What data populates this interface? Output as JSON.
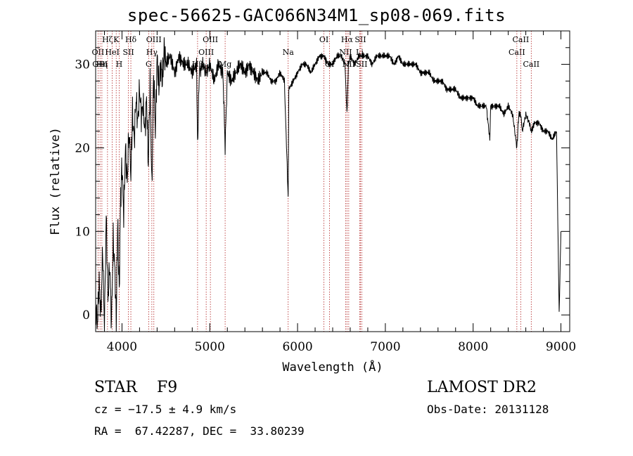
{
  "title": "spec-56625-GAC066N34M1_sp08-069.fits",
  "info": {
    "object_class": "STAR    F9",
    "survey": "LAMOST DR2",
    "cz": "cz = −17.5 ± 4.9 km/s",
    "obs_date": "Obs-Date: 20131128",
    "radec": "RA =  67.42287, DEC =  33.80239"
  },
  "colors": {
    "spectrum": "#000000",
    "line_markers": "#b22222",
    "axes": "#000000"
  },
  "chart_data": {
    "type": "line",
    "title": "spec-56625-GAC066N34M1_sp08-069.fits",
    "xlabel": "Wavelength (Å)",
    "ylabel": "Flux (relative)",
    "xlim": [
      3700,
      9100
    ],
    "ylim": [
      -2,
      34
    ],
    "xticks": [
      4000,
      5000,
      6000,
      7000,
      8000,
      9000
    ],
    "yticks": [
      0,
      10,
      20,
      30
    ],
    "xtick_labels": [
      "4000",
      "5000",
      "6000",
      "7000",
      "8000",
      "9000"
    ],
    "ytick_labels": [
      "0",
      "10",
      "20",
      "30"
    ],
    "grid": false,
    "series": [
      {
        "x": [
          3700,
          3720,
          3740,
          3760,
          3780,
          3800,
          3820,
          3840,
          3860,
          3880,
          3900,
          3920,
          3935,
          3950,
          3968,
          3985,
          4000,
          4020,
          4040,
          4060,
          4080,
          4101,
          4120,
          4140,
          4160,
          4180,
          4200,
          4220,
          4240,
          4260,
          4280,
          4300,
          4320,
          4340,
          4360,
          4380,
          4400,
          4420,
          4440,
          4460,
          4480,
          4500,
          4550,
          4600,
          4650,
          4700,
          4750,
          4800,
          4850,
          4861,
          4880,
          4920,
          4960,
          5000,
          5050,
          5100,
          5150,
          5175,
          5200,
          5250,
          5300,
          5350,
          5400,
          5450,
          5500,
          5550,
          5600,
          5650,
          5700,
          5750,
          5800,
          5850,
          5893,
          5900,
          5950,
          6000,
          6050,
          6100,
          6150,
          6200,
          6250,
          6300,
          6350,
          6400,
          6450,
          6500,
          6540,
          6563,
          6580,
          6600,
          6650,
          6700,
          6750,
          6800,
          6850,
          6900,
          6950,
          7000,
          7050,
          7100,
          7150,
          7200,
          7250,
          7300,
          7350,
          7400,
          7450,
          7500,
          7550,
          7600,
          7650,
          7700,
          7750,
          7800,
          7850,
          7900,
          7950,
          8000,
          8050,
          8100,
          8150,
          8190,
          8200,
          8250,
          8300,
          8350,
          8400,
          8450,
          8498,
          8520,
          8542,
          8560,
          8600,
          8640,
          8662,
          8700,
          8750,
          8800,
          8850,
          8900,
          8950,
          8980,
          9000
        ],
        "y": [
          1,
          -1,
          4,
          0,
          8,
          -2,
          12,
          2,
          6,
          -1,
          9,
          5,
          -1,
          11,
          3,
          14,
          18,
          12,
          20,
          16,
          22,
          17,
          24,
          21,
          26,
          23,
          27,
          24,
          25,
          22,
          26,
          18,
          28,
          15,
          29,
          22,
          31,
          27,
          30,
          28,
          32,
          30,
          31,
          29,
          31,
          30,
          30,
          29,
          30,
          20,
          29,
          30,
          29,
          30,
          28,
          30,
          29,
          20,
          29,
          28,
          29,
          30,
          29,
          30,
          29,
          28,
          29,
          29,
          28,
          28,
          29,
          28,
          14,
          27,
          28,
          29,
          30,
          30,
          29,
          30,
          31,
          31,
          30,
          30,
          31,
          31,
          30,
          24,
          30,
          31,
          30,
          31,
          31,
          31,
          30,
          31,
          31,
          31,
          31,
          30,
          31,
          30,
          30,
          30,
          30,
          29,
          29,
          29,
          28,
          28,
          28,
          27,
          27,
          27,
          26,
          26,
          26,
          26,
          25,
          25,
          25,
          21,
          25,
          25,
          25,
          24,
          25,
          24,
          20,
          24,
          24,
          22,
          24,
          23,
          22,
          23,
          23,
          22,
          22,
          21,
          22,
          0,
          10
        ]
      }
    ],
    "line_labels": [
      {
        "x": 3727,
        "label": "OII",
        "row": 1
      },
      {
        "x": 3750,
        "label": "OIII",
        "row": 2
      },
      {
        "x": 3771,
        "label": "Hη",
        "row": 2
      },
      {
        "x": 3835,
        "label": "Hζ",
        "row": 0
      },
      {
        "x": 3889,
        "label": "HeI",
        "row": 1
      },
      {
        "x": 3934,
        "label": "K",
        "row": 0
      },
      {
        "x": 3968,
        "label": "H",
        "row": 2
      },
      {
        "x": 4073,
        "label": "SII",
        "row": 1
      },
      {
        "x": 4101,
        "label": "Hδ",
        "row": 0
      },
      {
        "x": 4304,
        "label": "G",
        "row": 2
      },
      {
        "x": 4340,
        "label": "Hγ",
        "row": 1
      },
      {
        "x": 4363,
        "label": "OIII",
        "row": 0
      },
      {
        "x": 4861,
        "label": "Hβ",
        "row": 2
      },
      {
        "x": 4959,
        "label": "OIII",
        "row": 1
      },
      {
        "x": 5007,
        "label": "OIII",
        "row": 0
      },
      {
        "x": 5175,
        "label": "Mg",
        "row": 2
      },
      {
        "x": 5893,
        "label": "Na",
        "row": 1
      },
      {
        "x": 6300,
        "label": "OI",
        "row": 0
      },
      {
        "x": 6364,
        "label": "OI",
        "row": 2
      },
      {
        "x": 6548,
        "label": "NII",
        "row": 1
      },
      {
        "x": 6563,
        "label": "Hα",
        "row": 0
      },
      {
        "x": 6583,
        "label": "NII",
        "row": 2
      },
      {
        "x": 6708,
        "label": "Li",
        "row": 1
      },
      {
        "x": 6716,
        "label": "SII",
        "row": 0
      },
      {
        "x": 6731,
        "label": "SII",
        "row": 2
      },
      {
        "x": 8498,
        "label": "CaII",
        "row": 1
      },
      {
        "x": 8542,
        "label": "CaII",
        "row": 0
      },
      {
        "x": 8662,
        "label": "CaII",
        "row": 2
      }
    ]
  }
}
